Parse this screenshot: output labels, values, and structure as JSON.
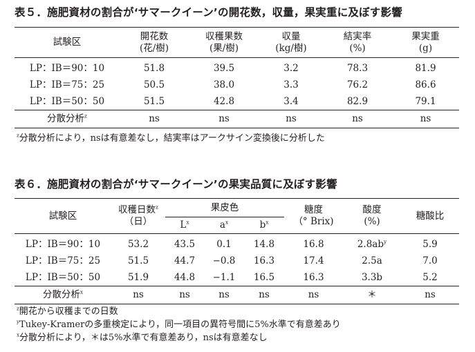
{
  "table5": {
    "caption": "表５．施肥資材の割合が‘サマークイーン’の開花数，収量，果実重に及ぼす影響",
    "columns": [
      {
        "line1": "試験区",
        "line2": ""
      },
      {
        "line1": "開花数",
        "line2": "(花/樹)"
      },
      {
        "line1": "収穫果数",
        "line2": "(果/樹)"
      },
      {
        "line1": "収量",
        "line2": "(kg/樹)"
      },
      {
        "line1": "結実率",
        "line2": "(%)"
      },
      {
        "line1": "果実重",
        "line2": "(g)"
      }
    ],
    "rows": [
      {
        "label": "LP：IB＝90：10",
        "values": [
          "51.8",
          "39.5",
          "3.2",
          "78.3",
          "81.9"
        ]
      },
      {
        "label": "LP：IB＝75：25",
        "values": [
          "50.5",
          "38.0",
          "3.3",
          "76.2",
          "86.6"
        ]
      },
      {
        "label": "LP：IB＝50：50",
        "values": [
          "51.5",
          "42.8",
          "3.4",
          "82.9",
          "79.1"
        ]
      }
    ],
    "anova": {
      "label": "分散分析",
      "mark": "z",
      "values": [
        "ns",
        "ns",
        "ns",
        "ns",
        "ns"
      ]
    },
    "notes": [
      {
        "mark": "z",
        "text": "分散分析により，nsは有意差なし，結実率はアークサイン変換後に分析した"
      }
    ]
  },
  "table6": {
    "caption": "表６．施肥資材の割合が‘サマークイーン’の果実品質に及ぼす影響",
    "header": {
      "plot": "試験区",
      "harvest_days": {
        "line1": "収穫日数",
        "mark": "z",
        "line2": "（日）"
      },
      "peel_color": {
        "label": "果皮色",
        "sub": [
          {
            "name": "L",
            "mark": "x"
          },
          {
            "name": "a",
            "mark": "x"
          },
          {
            "name": "b",
            "mark": "x"
          }
        ]
      },
      "sugar": {
        "line1": "糖度",
        "line2": "（° Brix)"
      },
      "acidity": {
        "line1": "酸度",
        "line2": "(%)"
      },
      "ratio": {
        "line1": "糖酸比"
      }
    },
    "rows": [
      {
        "label": "LP：IB＝90：10",
        "values": [
          "53.2",
          "43.5",
          "0.1",
          "14.8",
          "16.8",
          "2.8ab",
          "5.9"
        ],
        "acid_mark": "y"
      },
      {
        "label": "LP：IB＝75：25",
        "values": [
          "51.5",
          "44.7",
          "−0.8",
          "16.3",
          "17.4",
          "2.5a",
          "7.0"
        ],
        "acid_mark": ""
      },
      {
        "label": "LP：IB＝50：50",
        "values": [
          "51.9",
          "44.8",
          "−1.1",
          "16.5",
          "16.3",
          "3.3b",
          "5.2"
        ],
        "acid_mark": ""
      }
    ],
    "anova": {
      "label": "分散分析",
      "mark": "x",
      "values": [
        "ns",
        "ns",
        "ns",
        "ns",
        "ns",
        "＊",
        "ns"
      ]
    },
    "notes": [
      {
        "mark": "z",
        "text": "開花から収穫までの日数"
      },
      {
        "mark": "y",
        "text": "Tukey-Kramerの多重検定により，同一項目の異符号間に5%水準で有意差あり"
      },
      {
        "mark": "x",
        "text": "分散分析により，＊は5%水準で有意差あり，nsは有意差なし"
      }
    ]
  }
}
